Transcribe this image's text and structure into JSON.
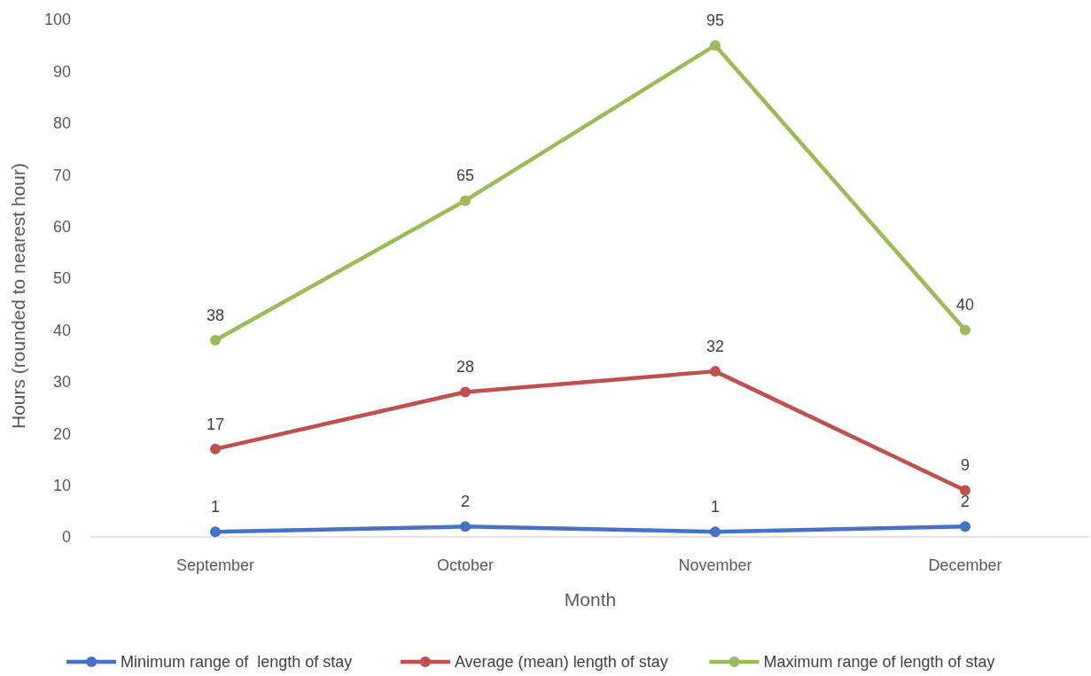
{
  "chart_data": {
    "type": "line",
    "xlabel": "Month",
    "ylabel": "Hours (rounded to nearest hour)",
    "categories": [
      "September",
      "October",
      "November",
      "December"
    ],
    "series": [
      {
        "name": "Minimum range of  length of stay",
        "color": "#4472c4",
        "values": [
          1,
          2,
          1,
          2
        ]
      },
      {
        "name": "Average (mean) length of stay",
        "color": "#c0504d",
        "values": [
          17,
          28,
          32,
          9
        ]
      },
      {
        "name": "Maximum range of length of stay",
        "color": "#9bbb59",
        "values": [
          38,
          65,
          95,
          40
        ]
      }
    ],
    "ylim": [
      0,
      100
    ],
    "yticks": [
      0,
      10,
      20,
      30,
      40,
      50,
      60,
      70,
      80,
      90,
      100
    ],
    "grid": false,
    "legend": "bottom",
    "marker": "circle",
    "line_style": "solid",
    "data_labels": true
  }
}
